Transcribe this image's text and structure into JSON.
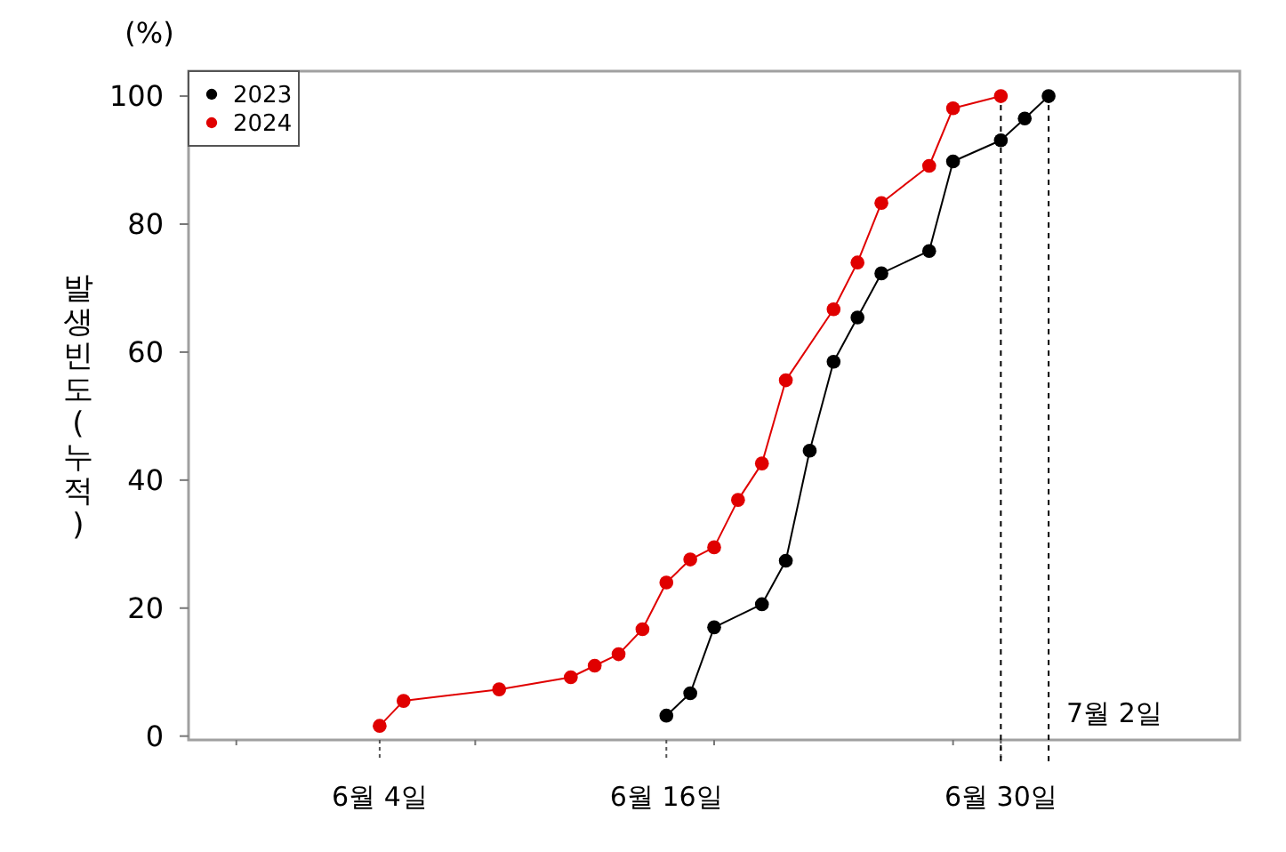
{
  "chart_data": {
    "type": "line",
    "ylabel": "발생빈도 (누적)",
    "annotations": [
      "(%)"
    ],
    "xlim": [
      "--05-27",
      "--07-10"
    ],
    "ylim": [
      -0.6,
      103.9
    ],
    "xticks": [
      {
        "value": "--05-29",
        "label": null
      },
      {
        "value": "--06-04",
        "label": "6월 4일"
      },
      {
        "value": "--06-08",
        "label": null
      },
      {
        "value": "--06-16",
        "label": "6월 16일"
      },
      {
        "value": "--06-18",
        "label": null
      },
      {
        "value": "--06-28",
        "label": null
      },
      {
        "value": "--06-30",
        "label": "6월 30일"
      }
    ],
    "yticks": [
      0,
      20,
      40,
      60,
      80,
      100
    ],
    "grid": false,
    "legend": "top left",
    "marker": "circle",
    "line_style": "solid",
    "ref_lines": [
      {
        "axis": "x",
        "value": "--06-30",
        "label": null,
        "color": "#000000",
        "line_style": "dashed"
      },
      {
        "axis": "x",
        "value": "--07-02",
        "label": "7월 2일",
        "color": "#000000",
        "line_style": "dashed"
      }
    ],
    "series": [
      {
        "name": "2023",
        "color": "#000000",
        "x": [
          "--06-16",
          "--06-17",
          "--06-18",
          "--06-20",
          "--06-21",
          "--06-22",
          "--06-23",
          "--06-24",
          "--06-25",
          "--06-27",
          "--06-28",
          "--06-30",
          "--07-01",
          "--07-02"
        ],
        "values": [
          3.2,
          6.7,
          17.0,
          20.6,
          27.4,
          44.6,
          58.5,
          65.4,
          72.3,
          75.8,
          89.8,
          93.1,
          96.5,
          100
        ]
      },
      {
        "name": "2024",
        "color": "#e00000",
        "x": [
          "--06-04",
          "--06-05",
          "--06-09",
          "--06-12",
          "--06-13",
          "--06-14",
          "--06-15",
          "--06-16",
          "--06-17",
          "--06-18",
          "--06-19",
          "--06-20",
          "--06-21",
          "--06-23",
          "--06-24",
          "--06-25",
          "--06-27",
          "--06-28",
          "--06-30"
        ],
        "values": [
          1.6,
          5.5,
          7.3,
          9.2,
          11.0,
          12.8,
          16.7,
          24.0,
          27.6,
          29.5,
          36.9,
          42.6,
          55.6,
          66.7,
          74.0,
          83.3,
          89.1,
          98.1,
          100
        ]
      }
    ]
  }
}
